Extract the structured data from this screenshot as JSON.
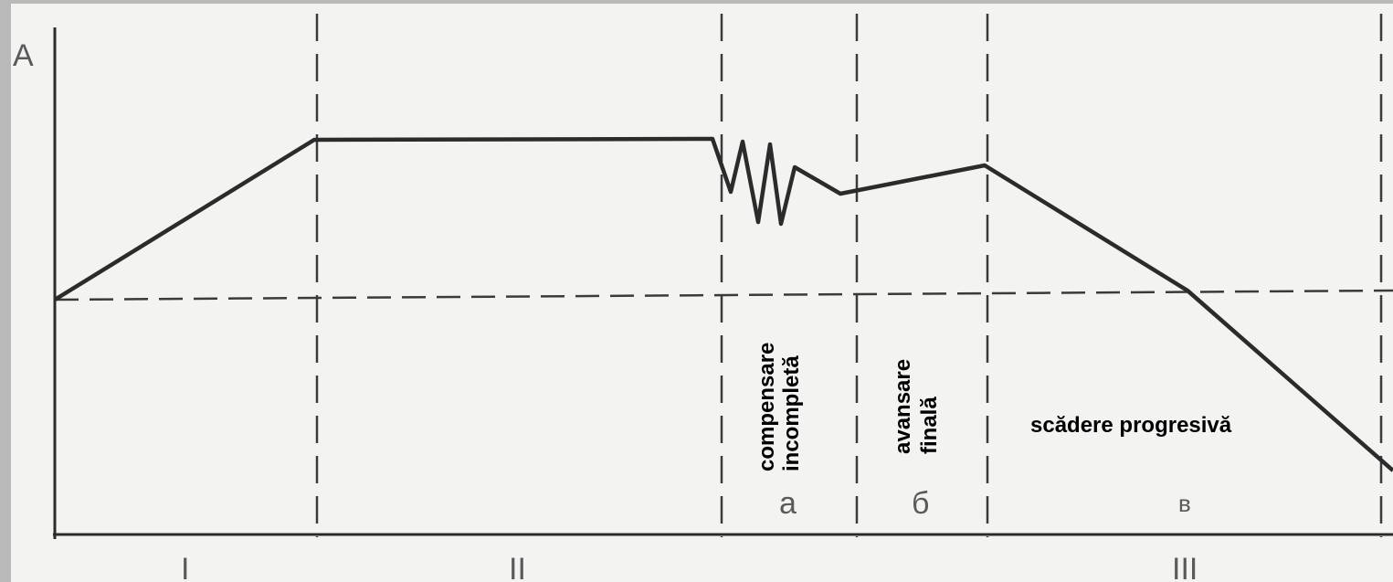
{
  "axis": {
    "y_label": "A"
  },
  "phases": [
    {
      "id": "I",
      "label": "I"
    },
    {
      "id": "II",
      "label": "II"
    },
    {
      "id": "III",
      "label": "III"
    }
  ],
  "subphases": [
    {
      "id": "a",
      "label": "a",
      "description": [
        "compensare",
        "incompletă"
      ]
    },
    {
      "id": "b",
      "label": "б",
      "description": [
        "avansare",
        "finală"
      ]
    },
    {
      "id": "c",
      "label": "в",
      "description": [
        "scădere progresivă"
      ]
    }
  ],
  "colors": {
    "line": "#2b2b2b",
    "dash": "#3a3a3a",
    "paper": "#f3f3f1",
    "border": "#b9b9b9"
  }
}
